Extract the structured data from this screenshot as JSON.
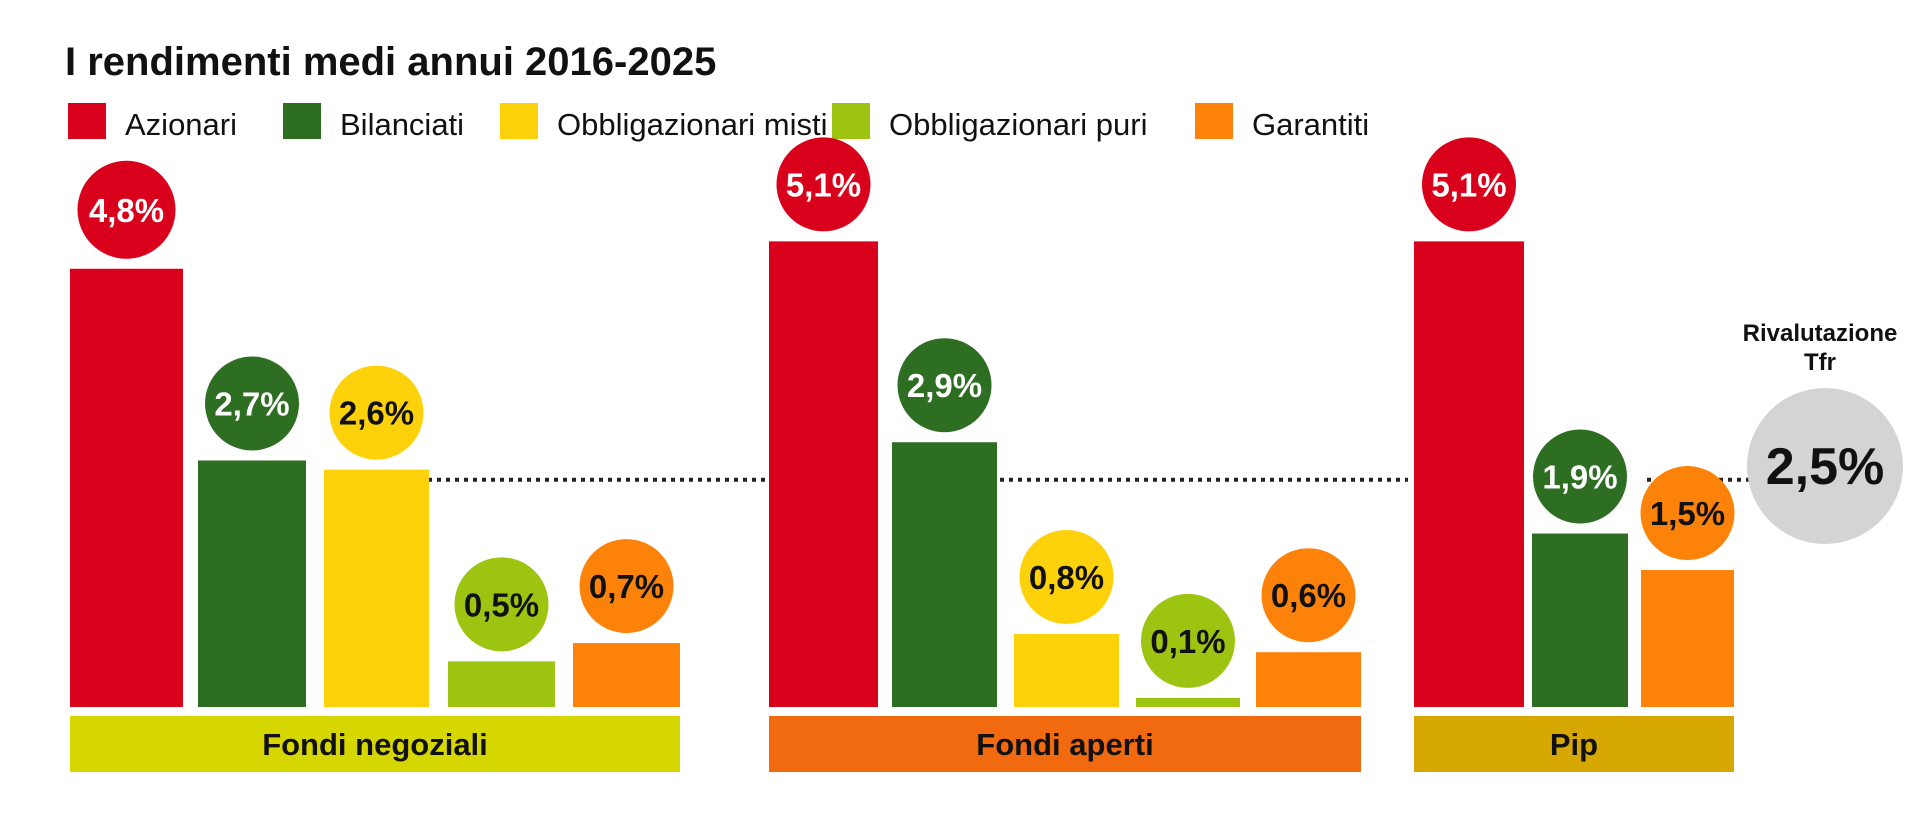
{
  "chart_data": {
    "type": "bar",
    "title": "I rendimenti medi annui 2016-2025",
    "unit": "%",
    "series": [
      {
        "name": "Azionari",
        "color": "#d9001b",
        "label_color": "#ffffff"
      },
      {
        "name": "Bilanciati",
        "color": "#2e6e23",
        "label_color": "#ffffff"
      },
      {
        "name": "Obbligazionari misti",
        "color": "#fdd20b",
        "label_color": "#111111"
      },
      {
        "name": "Obbligazionari puri",
        "color": "#9dc411",
        "label_color": "#111111"
      },
      {
        "name": "Garantiti",
        "color": "#fd8209",
        "label_color": "#111111"
      }
    ],
    "groups": [
      {
        "name": "Fondi negoziali",
        "band_color": "#d6d600",
        "bars": [
          {
            "series": "Azionari",
            "value": 4.8,
            "label": "4,8%"
          },
          {
            "series": "Bilanciati",
            "value": 2.7,
            "label": "2,7%"
          },
          {
            "series": "Obbligazionari misti",
            "value": 2.6,
            "label": "2,6%"
          },
          {
            "series": "Obbligazionari puri",
            "value": 0.5,
            "label": "0,5%"
          },
          {
            "series": "Garantiti",
            "value": 0.7,
            "label": "0,7%"
          }
        ]
      },
      {
        "name": "Fondi aperti",
        "band_color": "#f26a10",
        "bars": [
          {
            "series": "Azionari",
            "value": 5.1,
            "label": "5,1%"
          },
          {
            "series": "Bilanciati",
            "value": 2.9,
            "label": "2,9%"
          },
          {
            "series": "Obbligazionari misti",
            "value": 0.8,
            "label": "0,8%"
          },
          {
            "series": "Obbligazionari puri",
            "value": 0.1,
            "label": "0,1%"
          },
          {
            "series": "Garantiti",
            "value": 0.6,
            "label": "0,6%"
          }
        ]
      },
      {
        "name": "Pip",
        "band_color": "#d6a700",
        "bars": [
          {
            "series": "Azionari",
            "value": 5.1,
            "label": "5,1%"
          },
          {
            "series": "Bilanciati",
            "value": 1.9,
            "label": "1,9%"
          },
          {
            "series": "Garantiti",
            "value": 1.5,
            "label": "1,5%"
          }
        ]
      }
    ],
    "reference": {
      "label_line1": "Rivalutazione",
      "label_line2": "Tfr",
      "value": 2.5,
      "label": "2,5%",
      "circle_color": "#d4d4d4",
      "line_style": "dotted"
    }
  }
}
